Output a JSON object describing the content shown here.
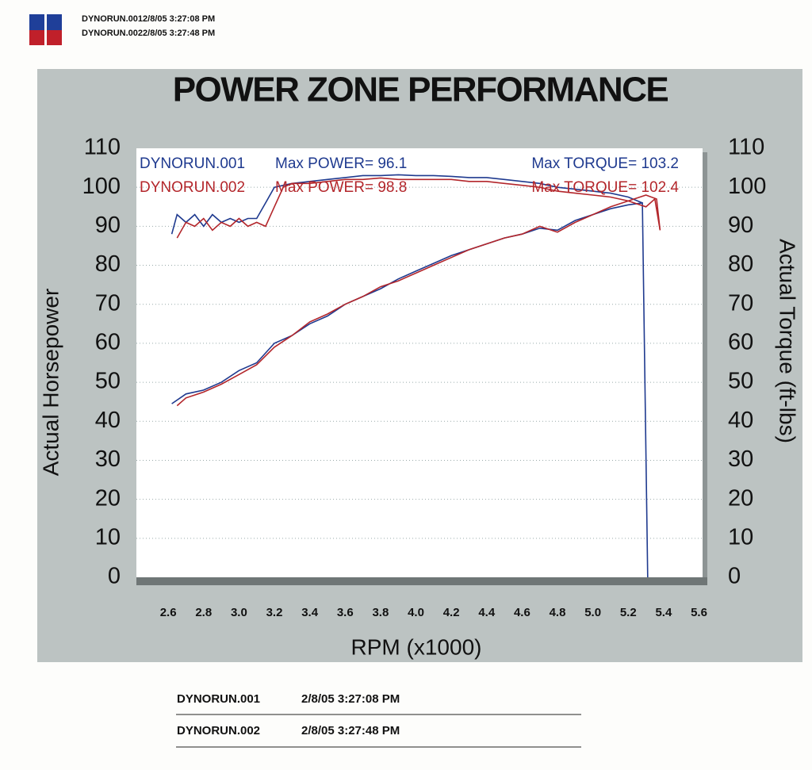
{
  "header": {
    "lines": [
      "DYNORUN.0012/8/05 3:27:08 PM",
      "DYNORUN.0022/8/05 3:27:48 PM"
    ]
  },
  "chart_data": {
    "type": "line",
    "title": "POWER ZONE PERFORMANCE",
    "xlabel": "RPM (x1000)",
    "ylabel": "Actual Horsepower",
    "y2label": "Actual Torque (ft-lbs)",
    "xlim": [
      2.42,
      5.62
    ],
    "ylim": [
      0,
      110
    ],
    "y2lim": [
      0,
      110
    ],
    "xticks": [
      2.6,
      2.8,
      {
        "value": 3,
        "label": "3.0"
      },
      3.2,
      3.4,
      3.6,
      3.8,
      {
        "value": 4,
        "label": "4.0"
      },
      4.2,
      4.4,
      4.6,
      4.8,
      {
        "value": 5,
        "label": "5.0"
      },
      5.2,
      5.4,
      5.6
    ],
    "yticks": [
      0,
      10,
      20,
      30,
      40,
      50,
      60,
      70,
      80,
      90,
      100,
      110
    ],
    "y2ticks": [
      0,
      10,
      20,
      30,
      40,
      50,
      60,
      70,
      80,
      90,
      100,
      110
    ],
    "grid": true,
    "series": [
      {
        "name": "DYNORUN.001",
        "color": "#1f3a8f",
        "power_label": "Max POWER= 96.1",
        "torque_label": "Max TORQUE= 103.2",
        "horsepower": {
          "x": [
            2.62,
            2.7,
            2.8,
            2.9,
            3.0,
            3.1,
            3.2,
            3.3,
            3.4,
            3.5,
            3.6,
            3.7,
            3.8,
            3.9,
            4.0,
            4.1,
            4.2,
            4.3,
            4.4,
            4.5,
            4.6,
            4.7,
            4.8,
            4.9,
            5.0,
            5.1,
            5.2,
            5.28,
            5.31
          ],
          "values": [
            44.5,
            47,
            48,
            50,
            53,
            55,
            60,
            62,
            65,
            67,
            70,
            72,
            74,
            76.5,
            78.5,
            80.5,
            82.5,
            84,
            85.5,
            87,
            88,
            89.5,
            89,
            91.5,
            93,
            94.5,
            95.5,
            96,
            0
          ]
        },
        "torque": {
          "axis": "y2",
          "x": [
            2.62,
            2.65,
            2.7,
            2.75,
            2.8,
            2.85,
            2.9,
            2.95,
            3.0,
            3.05,
            3.1,
            3.15,
            3.2,
            3.3,
            3.4,
            3.5,
            3.6,
            3.7,
            3.8,
            3.9,
            4.0,
            4.1,
            4.2,
            4.3,
            4.4,
            4.5,
            4.6,
            4.7,
            4.8,
            4.9,
            5.0,
            5.1,
            5.2,
            5.28
          ],
          "values": [
            88,
            93,
            91,
            93,
            90,
            93,
            91,
            92,
            91,
            92,
            92,
            96,
            100,
            101,
            101.5,
            102,
            102.5,
            103,
            103,
            103.2,
            103,
            103,
            102.8,
            102.5,
            102.5,
            102,
            101.5,
            101,
            100,
            99.5,
            99,
            98.5,
            97.5,
            96
          ]
        }
      },
      {
        "name": "DYNORUN.002",
        "color": "#b3262b",
        "power_label": "Max POWER= 98.8",
        "torque_label": "Max TORQUE= 102.4",
        "horsepower": {
          "x": [
            2.65,
            2.7,
            2.8,
            2.9,
            3.0,
            3.1,
            3.2,
            3.3,
            3.4,
            3.5,
            3.6,
            3.7,
            3.8,
            3.9,
            4.0,
            4.1,
            4.2,
            4.3,
            4.4,
            4.5,
            4.6,
            4.7,
            4.8,
            4.9,
            5.0,
            5.1,
            5.2,
            5.3,
            5.36,
            5.38
          ],
          "values": [
            44,
            46,
            47.5,
            49.5,
            52,
            54.5,
            59,
            62,
            65.5,
            67.5,
            70,
            72,
            74.5,
            76,
            78,
            80,
            82,
            84,
            85.5,
            87,
            88,
            90,
            88.5,
            91,
            93,
            95,
            96.5,
            98,
            97,
            89
          ]
        },
        "torque": {
          "axis": "y2",
          "x": [
            2.65,
            2.7,
            2.75,
            2.8,
            2.85,
            2.9,
            2.95,
            3.0,
            3.05,
            3.1,
            3.15,
            3.2,
            3.25,
            3.3,
            3.4,
            3.5,
            3.6,
            3.7,
            3.8,
            3.9,
            4.0,
            4.1,
            4.2,
            4.3,
            4.4,
            4.5,
            4.6,
            4.7,
            4.8,
            4.9,
            5.0,
            5.1,
            5.2,
            5.3,
            5.35,
            5.38
          ],
          "values": [
            87,
            91,
            90,
            92,
            89,
            91,
            90,
            92,
            90,
            91,
            90,
            95,
            100,
            101,
            101,
            101.5,
            102,
            102,
            102.4,
            102,
            102,
            102,
            102,
            101.5,
            101.5,
            101,
            100.5,
            100,
            99,
            98.5,
            98,
            97.5,
            96.5,
            95,
            97,
            89
          ]
        }
      }
    ]
  },
  "footer": {
    "rows": [
      [
        "DYNORUN.001",
        "2/8/05 3:27:08 PM"
      ],
      [
        "DYNORUN.002",
        "2/8/05 3:27:48 PM"
      ]
    ]
  }
}
